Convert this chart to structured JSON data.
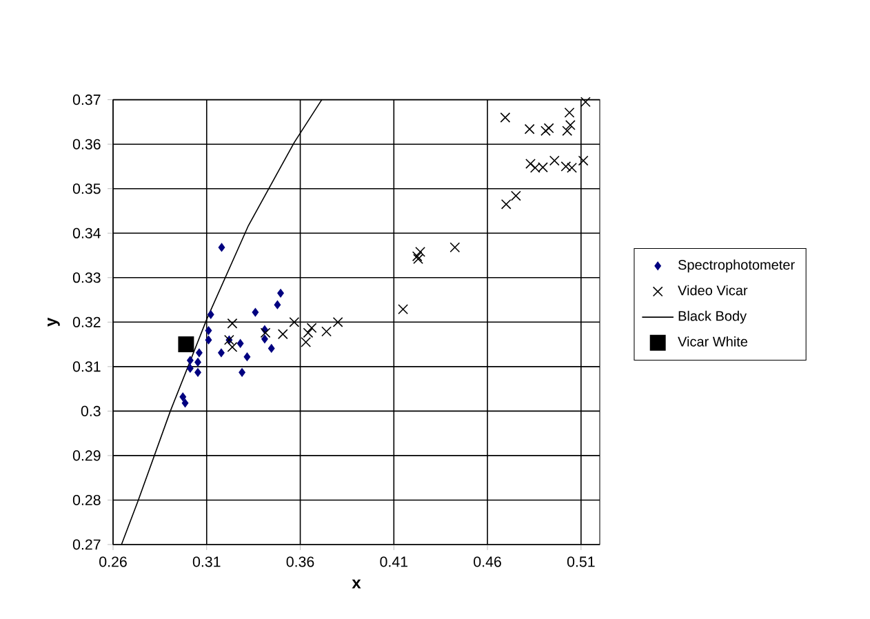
{
  "chart_data": {
    "type": "scatter",
    "xlabel": "x",
    "ylabel": "y",
    "xlim": [
      0.26,
      0.52
    ],
    "ylim": [
      0.27,
      0.37
    ],
    "xticks": [
      0.26,
      0.31,
      0.36,
      0.41,
      0.46,
      0.51
    ],
    "yticks": [
      0.27,
      0.28,
      0.29,
      0.3,
      0.31,
      0.32,
      0.33,
      0.34,
      0.35,
      0.36,
      0.37
    ],
    "grid": true,
    "legend": "right",
    "series": [
      {
        "name": "Spectrophotometer",
        "marker": "diamond",
        "color": "#000080",
        "x": [
          0.318,
          0.3495,
          0.3478,
          0.336,
          0.3122,
          0.311,
          0.311,
          0.341,
          0.341,
          0.328,
          0.322,
          0.3178,
          0.3446,
          0.3316,
          0.3289,
          0.306,
          0.3012,
          0.3053,
          0.3012,
          0.3053,
          0.2973,
          0.2985
        ],
        "values": [
          0.3368,
          0.3265,
          0.3239,
          0.3222,
          0.3217,
          0.3181,
          0.316,
          0.3183,
          0.3162,
          0.3152,
          0.316,
          0.3131,
          0.3141,
          0.3122,
          0.3087,
          0.3131,
          0.3114,
          0.311,
          0.3096,
          0.3087,
          0.3032,
          0.3018
        ]
      },
      {
        "name": "Video Vicar",
        "marker": "cross",
        "color": "#000000",
        "x": [
          0.3237,
          0.322,
          0.3237,
          0.3414,
          0.3507,
          0.3568,
          0.363,
          0.3642,
          0.3661,
          0.374,
          0.3801,
          0.4149,
          0.423,
          0.4241,
          0.4225,
          0.4426,
          0.4695,
          0.4825,
          0.4911,
          0.4928,
          0.5026,
          0.5043,
          0.5038,
          0.5124,
          0.483,
          0.4855,
          0.4896,
          0.4958,
          0.5019,
          0.5051,
          0.5112,
          0.47,
          0.4752
        ],
        "values": [
          0.3197,
          0.316,
          0.3144,
          0.3176,
          0.3173,
          0.32,
          0.3155,
          0.3176,
          0.3187,
          0.3179,
          0.32,
          0.3229,
          0.3342,
          0.3358,
          0.3348,
          0.3368,
          0.366,
          0.3634,
          0.363,
          0.3636,
          0.363,
          0.3643,
          0.3671,
          0.3695,
          0.3556,
          0.3547,
          0.3548,
          0.3563,
          0.355,
          0.3547,
          0.3563,
          0.3465,
          0.3484
        ]
      },
      {
        "name": "Black Body",
        "type": "line",
        "marker": "none",
        "line_style": "solid",
        "color": "#000000",
        "x": [
          0.2645,
          0.2735,
          0.2906,
          0.3102,
          0.3323,
          0.3568,
          0.3715
        ],
        "values": [
          0.27,
          0.28,
          0.3,
          0.3208,
          0.3417,
          0.3604,
          0.37
        ]
      },
      {
        "name": "Vicar White",
        "marker": "square",
        "color": "#000000",
        "x": [
          0.299
        ],
        "values": [
          0.315
        ]
      }
    ]
  }
}
